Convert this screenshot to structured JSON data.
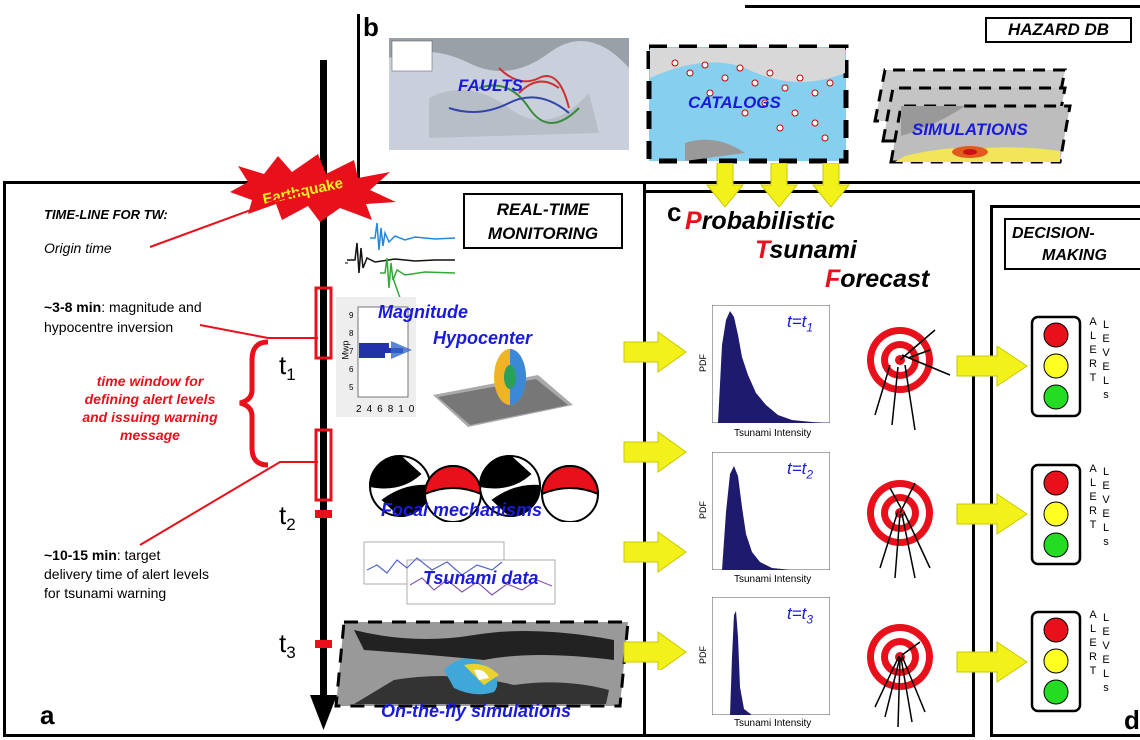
{
  "panel_letters": {
    "a": "a",
    "b": "b",
    "c": "c",
    "d": "d"
  },
  "hazard_db": {
    "title": "HAZARD DB",
    "faults": "FAULTS",
    "catalogs": "CATALOGS",
    "simulations": "SIMULATIONS"
  },
  "timeline": {
    "header": "TIME-LINE FOR TW:",
    "earthquake": "Earthquake",
    "origin_time": "Origin time",
    "step1_bold": "~3-8 min",
    "step1_rest": ": magnitude and",
    "step1_line2": "hypocentre inversion",
    "window_line1": "time window for",
    "window_line2": "defining alert levels",
    "window_line3": "and issuing warning",
    "window_line4": "message",
    "step2_bold": "~10-15 min",
    "step2_rest": ": target",
    "step2_line2": "delivery time of alert levels",
    "step2_line3": "for tsunami warning",
    "t1": "t",
    "t1_sub": "1",
    "t2": "t",
    "t2_sub": "2",
    "t3": "t",
    "t3_sub": "3"
  },
  "monitoring": {
    "title_line1": "REAL-TIME",
    "title_line2": "MONITORING",
    "magnitude": "Magnitude",
    "hypocenter": "Hypocenter",
    "focal": "Focal mechanisms",
    "tsunami_data": "Tsunami data",
    "on_the_fly": "On-the-fly simulations",
    "mwp_label": "Mwp",
    "mwp_ticks": [
      "2",
      "4",
      "6",
      "8",
      "10"
    ],
    "mwp_yticks": [
      "9",
      "8",
      "7",
      "6",
      "5"
    ]
  },
  "forecast": {
    "title_p": "P",
    "title_p_rest": "robabilistic",
    "title_t": "T",
    "title_t_rest": "sunami",
    "title_f": "F",
    "title_f_rest": "orecast",
    "pdf_label": "PDF",
    "x_label": "Tsunami Intensity",
    "t_eq": [
      {
        "t": "t=t",
        "sub": "1"
      },
      {
        "t": "t=t",
        "sub": "2"
      },
      {
        "t": "t=t",
        "sub": "3"
      }
    ]
  },
  "decision": {
    "title_line1": "DECISION-",
    "title_line2": "MAKING",
    "alert": [
      "A",
      "L",
      "E",
      "R",
      "T"
    ],
    "levels": [
      "L",
      "E",
      "V",
      "E",
      "L",
      "s"
    ]
  },
  "colors": {
    "red": "#e8101a",
    "blue": "#1a1adb",
    "yellow": "#ffff22",
    "green": "#22dd22",
    "arrow": "#f2f21a",
    "navy": "#1e1a6e"
  }
}
